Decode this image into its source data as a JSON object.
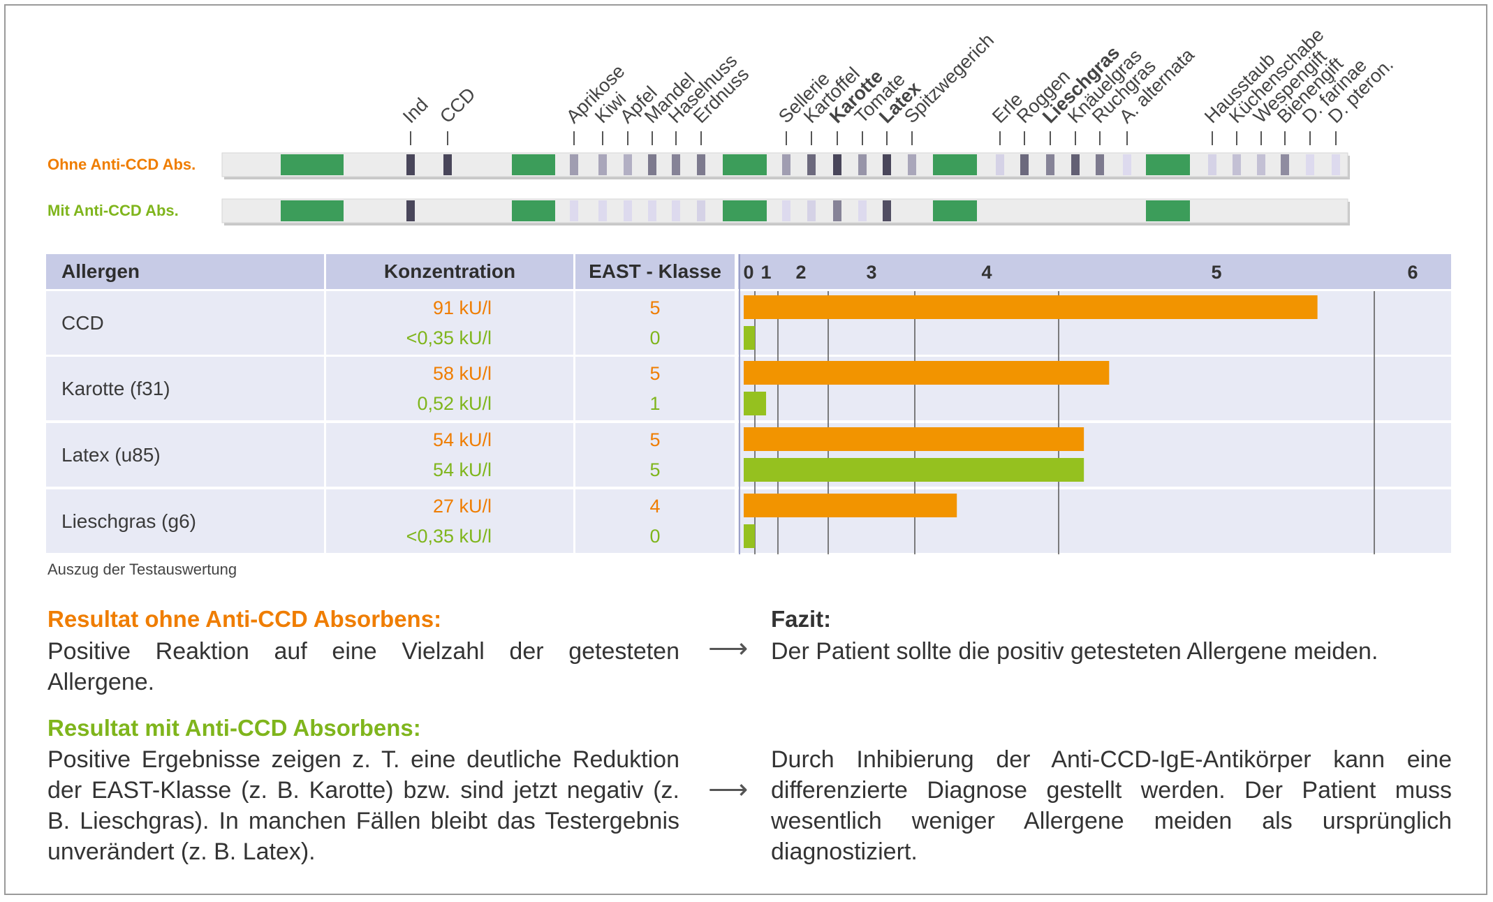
{
  "strips": {
    "row_labels": {
      "ohne": "Ohne Anti-CCD Abs.",
      "mit": "Mit Anti-CCD Abs."
    },
    "markers": [
      {
        "label": "Ind",
        "bold": false,
        "ohne": 0.9,
        "mit": 0.9
      },
      {
        "label": "CCD",
        "bold": false,
        "ohne": 0.9,
        "mit": 0.0
      },
      {
        "label": "Aprikose",
        "bold": false,
        "ohne": 0.4,
        "mit": 0.05
      },
      {
        "label": "Kiwi",
        "bold": false,
        "ohne": 0.35,
        "mit": 0.05
      },
      {
        "label": "Apfel",
        "bold": false,
        "ohne": 0.3,
        "mit": 0.05
      },
      {
        "label": "Mandel",
        "bold": false,
        "ohne": 0.6,
        "mit": 0.05
      },
      {
        "label": "Haselnuss",
        "bold": false,
        "ohne": 0.55,
        "mit": 0.05
      },
      {
        "label": "Erdnuss",
        "bold": false,
        "ohne": 0.6,
        "mit": 0.1
      },
      {
        "label": "Sellerie",
        "bold": false,
        "ohne": 0.4,
        "mit": 0.05
      },
      {
        "label": "Kartoffel",
        "bold": false,
        "ohne": 0.7,
        "mit": 0.1
      },
      {
        "label": "Karotte",
        "bold": true,
        "ohne": 0.9,
        "mit": 0.55
      },
      {
        "label": "Tomate",
        "bold": false,
        "ohne": 0.45,
        "mit": 0.05
      },
      {
        "label": "Latex",
        "bold": true,
        "ohne": 0.9,
        "mit": 0.85
      },
      {
        "label": "Spitzwegerich",
        "bold": false,
        "ohne": 0.35,
        "mit": 0.0
      },
      {
        "label": "Erle",
        "bold": false,
        "ohne": 0.1,
        "mit": 0.0
      },
      {
        "label": "Roggen",
        "bold": false,
        "ohne": 0.7,
        "mit": 0.0
      },
      {
        "label": "Lieschgras",
        "bold": true,
        "ohne": 0.55,
        "mit": 0.0
      },
      {
        "label": "Knäuelgras",
        "bold": false,
        "ohne": 0.75,
        "mit": 0.0
      },
      {
        "label": "Ruchgras",
        "bold": false,
        "ohne": 0.6,
        "mit": 0.0
      },
      {
        "label": "A. alternata",
        "bold": false,
        "ohne": 0.05,
        "mit": 0.0
      },
      {
        "label": "Hausstaub",
        "bold": false,
        "ohne": 0.1,
        "mit": 0.0
      },
      {
        "label": "Küchenschabe",
        "bold": false,
        "ohne": 0.2,
        "mit": 0.0
      },
      {
        "label": "Wespengift",
        "bold": false,
        "ohne": 0.2,
        "mit": 0.0
      },
      {
        "label": "Bienengift",
        "bold": false,
        "ohne": 0.5,
        "mit": 0.0
      },
      {
        "label": "D. farinae",
        "bold": false,
        "ohne": 0.05,
        "mit": 0.0
      },
      {
        "label": "D. pteron.",
        "bold": false,
        "ohne": 0.05,
        "mit": 0.0
      }
    ]
  },
  "table": {
    "headers": {
      "allergen": "Allergen",
      "konzentration": "Konzentration",
      "east": "EAST - Klasse"
    },
    "rows": [
      {
        "allergen": "CCD",
        "ohne_conc": "91 kU/l",
        "ohne_class": "5",
        "mit_conc": "<0,35 kU/l",
        "mit_class": "0"
      },
      {
        "allergen": "Karotte (f31)",
        "ohne_conc": "58 kU/l",
        "ohne_class": "5",
        "mit_conc": "0,52 kU/l",
        "mit_class": "1"
      },
      {
        "allergen": "Latex (u85)",
        "ohne_conc": "54 kU/l",
        "ohne_class": "5",
        "mit_conc": "54 kU/l",
        "mit_class": "5"
      },
      {
        "allergen": "Lieschgras (g6)",
        "ohne_conc": "27 kU/l",
        "ohne_class": "4",
        "mit_conc": "<0,35 kU/l",
        "mit_class": "0"
      }
    ]
  },
  "chart_data": {
    "type": "bar",
    "orientation": "horizontal",
    "axis_ticks": [
      "0",
      "1",
      "2",
      "3",
      "4",
      "5",
      "6"
    ],
    "class_boundaries_kUl": [
      0.35,
      0.7,
      3.5,
      17.5,
      50,
      100
    ],
    "categories": [
      "CCD",
      "Karotte (f31)",
      "Latex (u85)",
      "Lieschgras (g6)"
    ],
    "series": [
      {
        "name": "",
        "color": "#f29400",
        "values": [
          91,
          58,
          54,
          27
        ]
      },
      {
        "name": "",
        "color": "#95c11f",
        "values": [
          0.35,
          0.52,
          54,
          0.35
        ]
      }
    ]
  },
  "texts": {
    "caption": "Auszug der Testauswertung",
    "ohne_title": "Resultat ohne Anti-CCD Absorbens:",
    "ohne_text": "Positive Reaktion auf eine Vielzahl der getesteten Allergene.",
    "fazit_title": "Fazit:",
    "fazit_text": "Der Patient sollte die positiv getesteten Allergene meiden.",
    "mit_title": "Resultat mit Anti-CCD Absorbens:",
    "mit_text": "Positive Ergebnisse zeigen z. T. eine deutliche Reduktion der EAST-Klasse (z. B. Karotte) bzw. sind jetzt negativ (z. B. Lieschgras). In manchen Fällen bleibt das Testergebnis unverändert (z. B. Latex).",
    "mit_conclusion": "Durch Inhibierung der Anti-CCD-IgE-Antikörper kann eine differenzierte Diagnose gestellt werden. Der Patient muss wesentlich weniger Allergene meiden als ursprünglich diagnostiziert.",
    "arrow": "⟶"
  }
}
